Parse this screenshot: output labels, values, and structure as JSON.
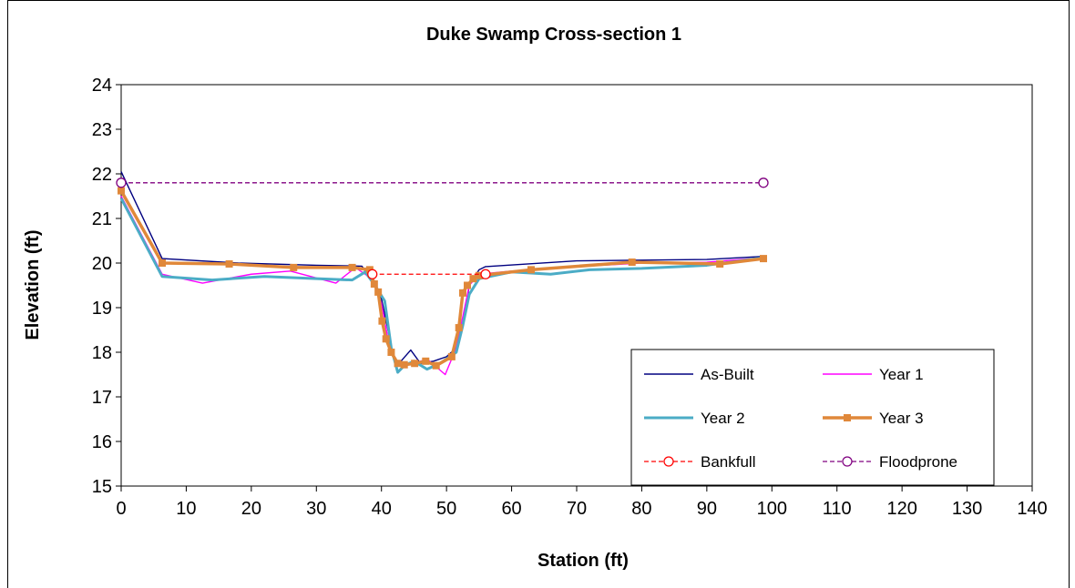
{
  "chart_data": {
    "type": "line",
    "title": "Duke Swamp Cross-section 1",
    "xlabel": "Station (ft)",
    "ylabel": "Elevation (ft)",
    "xlim": [
      0,
      140
    ],
    "ylim": [
      15,
      24
    ],
    "xticks": [
      0,
      10,
      20,
      30,
      40,
      50,
      60,
      70,
      80,
      90,
      100,
      110,
      120,
      130,
      140
    ],
    "yticks": [
      15,
      16,
      17,
      18,
      19,
      20,
      21,
      22,
      23,
      24
    ],
    "grid": false,
    "legend_position": "bottom-right",
    "series": [
      {
        "name": "As-Built",
        "color": "#000080",
        "style": "solid",
        "marker": "none",
        "x": [
          0,
          6.3,
          18,
          30,
          37,
          38.5,
          40,
          41,
          42,
          43,
          44.5,
          46,
          48,
          50,
          51.5,
          52.5,
          53.5,
          55,
          56,
          70,
          90,
          98.7
        ],
        "y": [
          22.05,
          20.1,
          20.0,
          19.95,
          19.93,
          19.6,
          19.2,
          18.5,
          17.8,
          17.8,
          18.05,
          17.75,
          17.8,
          17.9,
          18.1,
          18.6,
          19.5,
          19.85,
          19.92,
          20.05,
          20.08,
          20.15
        ]
      },
      {
        "name": "Year 1",
        "color": "#FF00FF",
        "style": "solid",
        "marker": "none",
        "x": [
          0,
          6.3,
          12.5,
          20,
          26,
          33,
          36,
          38.5,
          40,
          41,
          42,
          43,
          45,
          47,
          49.8,
          51.5,
          52.5,
          53.5,
          55,
          60,
          70,
          80,
          90,
          98.7
        ],
        "y": [
          21.5,
          19.75,
          19.55,
          19.75,
          19.82,
          19.55,
          19.9,
          19.65,
          19.1,
          18.3,
          17.8,
          17.7,
          17.75,
          17.85,
          17.5,
          18.1,
          18.8,
          19.5,
          19.75,
          19.82,
          19.92,
          20.0,
          20.02,
          20.12
        ]
      },
      {
        "name": "Year 2",
        "color": "#4BACC6",
        "style": "solid",
        "marker": "none",
        "x": [
          0,
          6.3,
          14,
          22,
          30,
          35.5,
          37.5,
          39,
          40.5,
          41.5,
          42.5,
          43.5,
          45,
          47,
          49,
          51.5,
          52.5,
          53.5,
          55,
          60,
          66,
          72,
          80,
          90,
          98.7
        ],
        "y": [
          21.45,
          19.7,
          19.62,
          19.7,
          19.65,
          19.62,
          19.8,
          19.5,
          19.15,
          18.1,
          17.55,
          17.7,
          17.8,
          17.62,
          17.75,
          18.0,
          18.6,
          19.3,
          19.65,
          19.8,
          19.75,
          19.85,
          19.88,
          19.95,
          20.12
        ]
      },
      {
        "name": "Year 3",
        "color": "#E0883A",
        "style": "solid",
        "marker": "square",
        "x": [
          0,
          6.3,
          16.6,
          26.5,
          35.5,
          38.2,
          38.9,
          39.5,
          40.1,
          40.7,
          41.5,
          42.5,
          43.5,
          45.1,
          46.8,
          48.4,
          50.8,
          51.9,
          52.5,
          53.2,
          54.1,
          55.0,
          63,
          78.5,
          92,
          98.7
        ],
        "y": [
          21.62,
          20.0,
          19.98,
          19.9,
          19.9,
          19.85,
          19.53,
          19.35,
          18.7,
          18.3,
          18.0,
          17.75,
          17.72,
          17.75,
          17.8,
          17.7,
          17.9,
          18.55,
          19.33,
          19.5,
          19.65,
          19.72,
          19.85,
          20.02,
          19.98,
          20.1
        ]
      },
      {
        "name": "Bankfull",
        "color": "#FF0000",
        "style": "dashed",
        "marker": "circle",
        "x": [
          38.6,
          56
        ],
        "y": [
          19.75,
          19.75
        ]
      },
      {
        "name": "Floodprone",
        "color": "#800080",
        "style": "dashed",
        "marker": "circle",
        "x": [
          0,
          98.7
        ],
        "y": [
          21.8,
          21.8
        ]
      }
    ]
  }
}
